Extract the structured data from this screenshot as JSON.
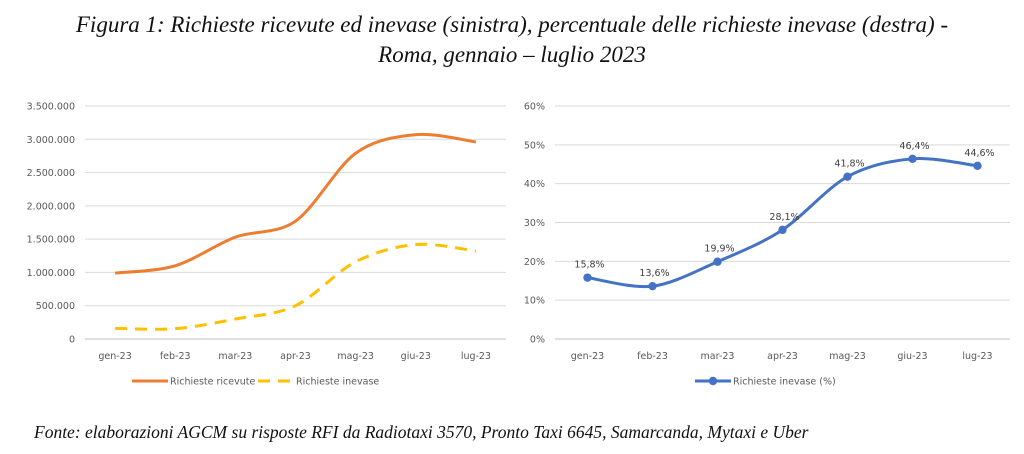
{
  "title_line1": "Figura 1: Richieste ricevute ed inevase (sinistra), percentuale delle richieste inevase (destra) -",
  "title_line2": "Roma, gennaio – luglio 2023",
  "source": "Fonte: elaborazioni AGCM su risposte RFI da Radiotaxi 3570, Pronto Taxi 6645, Samarcanda, Mytaxi e Uber",
  "colors": {
    "orange": "#ED7D31",
    "gold": "#FFC000",
    "blue": "#4472C4",
    "grid": "#D9D9D9",
    "axis": "#BFBFBF"
  },
  "chart_data": [
    {
      "type": "line",
      "categories": [
        "gen-23",
        "feb-23",
        "mar-23",
        "apr-23",
        "mag-23",
        "giu-23",
        "lug-23"
      ],
      "series": [
        {
          "name": "Richieste ricevute",
          "values": [
            990000,
            1100000,
            1530000,
            1770000,
            2790000,
            3070000,
            2960000
          ],
          "color": "#ED7D31",
          "dash": "solid"
        },
        {
          "name": "Richieste inevase",
          "values": [
            160000,
            155000,
            300000,
            500000,
            1160000,
            1420000,
            1320000
          ],
          "color": "#FFC000",
          "dash": "dashed"
        }
      ],
      "ylim": [
        0,
        3500000
      ],
      "yticks": [
        0,
        500000,
        1000000,
        1500000,
        2000000,
        2500000,
        3000000,
        3500000
      ],
      "ytick_labels": [
        "0",
        "500.000",
        "1.000.000",
        "1.500.000",
        "2.000.000",
        "2.500.000",
        "3.000.000",
        "3.500.000"
      ],
      "grid": true,
      "legend": "bottom"
    },
    {
      "type": "line",
      "categories": [
        "gen-23",
        "feb-23",
        "mar-23",
        "apr-23",
        "mag-23",
        "giu-23",
        "lug-23"
      ],
      "series": [
        {
          "name": "Richieste inevase (%)",
          "values": [
            15.8,
            13.6,
            19.9,
            28.1,
            41.8,
            46.4,
            44.6
          ],
          "color": "#4472C4",
          "markers": true
        }
      ],
      "data_labels": [
        "15,8%",
        "13,6%",
        "19,9%",
        "28,1%",
        "41,8%",
        "46,4%",
        "44,6%"
      ],
      "ylim": [
        0,
        60
      ],
      "yticks": [
        0,
        10,
        20,
        30,
        40,
        50,
        60
      ],
      "ytick_labels": [
        "0%",
        "10%",
        "20%",
        "30%",
        "40%",
        "50%",
        "60%"
      ],
      "grid": true,
      "legend": "bottom"
    }
  ]
}
